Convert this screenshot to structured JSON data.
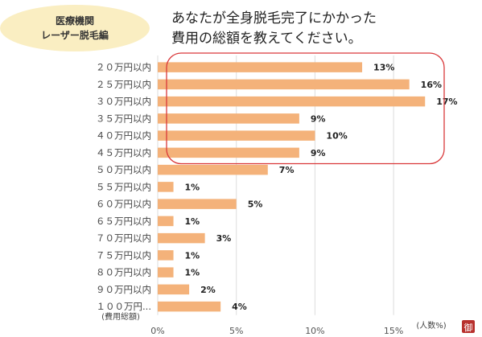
{
  "badge": {
    "line1": "医療機関",
    "line2": "レーザー脱毛編"
  },
  "question": {
    "line1": "あなたが全身脱毛完了にかかった",
    "line2": "費用の総額を教えてください。"
  },
  "stamp_char": "御",
  "colors": {
    "bar": "#f4b27a",
    "badge": "#faeec2",
    "highlight": "#d9383a",
    "grid": "#dddddd",
    "stamp": "#b8302d"
  },
  "chart_data": {
    "type": "bar",
    "orientation": "horizontal",
    "categories": [
      "２０万円以内",
      "２５万円以内",
      "３０万円以内",
      "３５万円以内",
      "４０万円以内",
      "４５万円以内",
      "５０万円以内",
      "５５万円以内",
      "６０万円以内",
      "６５万円以内",
      "７０万円以内",
      "７５万円以内",
      "８０万円以内",
      "９０万円以内",
      "１００万円..."
    ],
    "values": [
      13,
      16,
      17,
      9,
      10,
      9,
      7,
      1,
      5,
      1,
      3,
      1,
      1,
      2,
      4
    ],
    "value_labels": [
      "13%",
      "16%",
      "17%",
      "9%",
      "10%",
      "9%",
      "7%",
      "1%",
      "5%",
      "1%",
      "3%",
      "1%",
      "1%",
      "2%",
      "4%"
    ],
    "xlim": [
      0,
      17.5
    ],
    "xticks": [
      0,
      5,
      10,
      15
    ],
    "xtick_labels": [
      "0%",
      "5%",
      "10%",
      "15%"
    ],
    "xlabel": "(人数%)",
    "ylabel": "(費用総額)",
    "grid": true,
    "highlight": {
      "from_index": 0,
      "to_index": 5,
      "shape": "rounded-rect"
    }
  }
}
